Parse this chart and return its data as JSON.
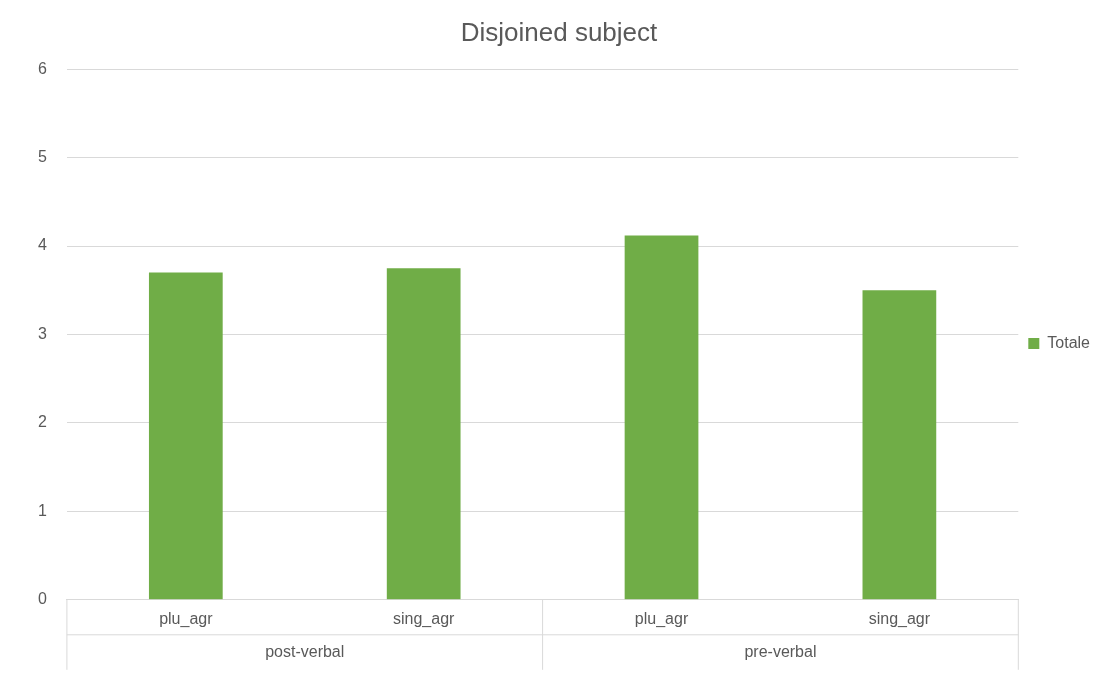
{
  "chart_data": {
    "type": "bar",
    "title": "Disjoined subject",
    "categories": [
      "plu_agr",
      "sing_agr",
      "plu_agr",
      "sing_agr"
    ],
    "series": [
      {
        "name": "Totale",
        "color": "#70ad47",
        "values": [
          3.7,
          3.75,
          4.12,
          3.5
        ]
      }
    ],
    "ylim": [
      0,
      6
    ],
    "yticks": [
      0,
      1,
      2,
      3,
      4,
      5,
      6
    ],
    "grid": "y",
    "legend": "right",
    "annotations": [
      "post-verbal",
      "pre-verbal"
    ]
  }
}
